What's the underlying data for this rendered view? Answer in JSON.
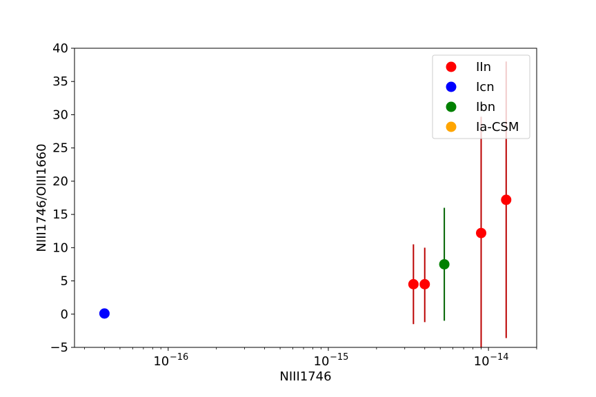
{
  "chart_data": {
    "type": "scatter",
    "title": "",
    "xlabel": "NIII1746",
    "ylabel": "NIII1746/OIII1660",
    "xscale": "log",
    "xlim": [
      2.6e-17,
      2e-14
    ],
    "ylim": [
      -5,
      40
    ],
    "x_ticks": [
      {
        "value": 1e-16,
        "base": "10",
        "exp": "−16"
      },
      {
        "value": 1e-15,
        "base": "10",
        "exp": "−15"
      },
      {
        "value": 1e-14,
        "base": "10",
        "exp": "−14"
      }
    ],
    "y_ticks": [
      -5,
      0,
      5,
      10,
      15,
      20,
      25,
      30,
      35,
      40
    ],
    "y_tick_labels": [
      "−5",
      "0",
      "5",
      "10",
      "15",
      "20",
      "25",
      "30",
      "35",
      "40"
    ],
    "grid": false,
    "legend_position": "top-right",
    "series": [
      {
        "name": "IIn",
        "color": "#ff0000",
        "errcolor": "#bb0000",
        "points": [
          {
            "x": 3.4e-15,
            "y": 4.5,
            "err_low": 6.0,
            "err_high": 6.0
          },
          {
            "x": 4e-15,
            "y": 4.5,
            "err_low": 5.7,
            "err_high": 5.5
          },
          {
            "x": 9e-15,
            "y": 12.2,
            "err_low": 17.2,
            "err_high": 17.5
          },
          {
            "x": 1.29e-14,
            "y": 17.2,
            "err_low": 20.8,
            "err_high": 20.8
          }
        ]
      },
      {
        "name": "Icn",
        "color": "#0000ff",
        "errcolor": "#0000bb",
        "points": [
          {
            "x": 4e-17,
            "y": 0.1,
            "err_low": 0,
            "err_high": 0
          }
        ]
      },
      {
        "name": "Ibn",
        "color": "#008000",
        "errcolor": "#006400",
        "points": [
          {
            "x": 5.3e-15,
            "y": 7.5,
            "err_low": 8.5,
            "err_high": 8.5
          }
        ]
      },
      {
        "name": "Ia-CSM",
        "color": "#ffa500",
        "errcolor": "#cc8400",
        "points": []
      }
    ]
  }
}
